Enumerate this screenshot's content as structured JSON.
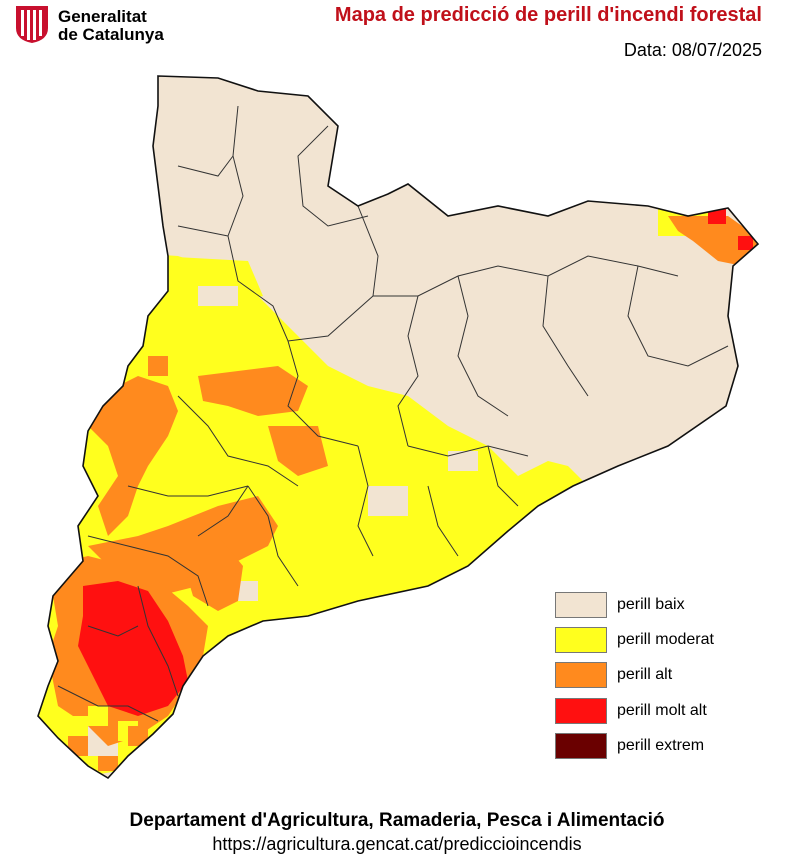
{
  "header": {
    "org_line1": "Generalitat",
    "org_line2": "de Catalunya",
    "title": "Mapa de predicció de perill d'incendi forestal",
    "date": "Data: 08/07/2025"
  },
  "map": {
    "region": "Catalunya",
    "colors": {
      "perill_baix": "#f2e4d2",
      "perill_moderat": "#ffff1e",
      "perill_alt": "#ff8a1e",
      "perill_molt_alt": "#ff1010",
      "perill_extrem": "#6a0000",
      "border": "#222222"
    }
  },
  "legend": {
    "items": [
      {
        "label": "perill baix",
        "color": "#f2e4d2"
      },
      {
        "label": "perill moderat",
        "color": "#ffff1e"
      },
      {
        "label": "perill alt",
        "color": "#ff8a1e"
      },
      {
        "label": "perill molt alt",
        "color": "#ff1010"
      },
      {
        "label": "perill extrem",
        "color": "#6a0000"
      }
    ]
  },
  "footer": {
    "department": "Departament d'Agricultura, Ramaderia, Pesca i Alimentació",
    "url": "https://agricultura.gencat.cat/prediccioincendis"
  }
}
